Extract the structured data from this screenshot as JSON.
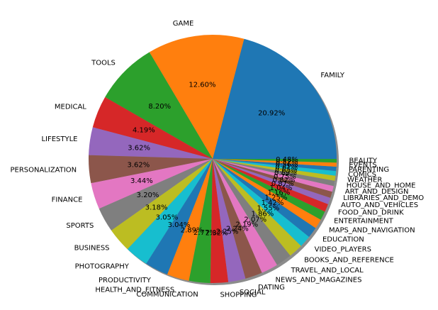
{
  "chart_data": {
    "type": "pie",
    "title": "",
    "shadow": true,
    "start_angle_deg": 0,
    "direction": "counterclockwise",
    "slices": [
      {
        "label": "FAMILY",
        "pct_text": "20.92%",
        "value": 20.92,
        "color": "#1f77b4"
      },
      {
        "label": "GAME",
        "pct_text": "12.60%",
        "value": 12.6,
        "color": "#ff7f0e"
      },
      {
        "label": "TOOLS",
        "pct_text": "8.20%",
        "value": 8.2,
        "color": "#2ca02c"
      },
      {
        "label": "MEDICAL",
        "pct_text": "4.19%",
        "value": 4.19,
        "color": "#d62728"
      },
      {
        "label": "LIFESTYLE",
        "pct_text": "3.62%",
        "value": 3.62,
        "color": "#9467bd"
      },
      {
        "label": "PERSONALIZATION",
        "pct_text": "3.62%",
        "value": 3.62,
        "color": "#8c564b"
      },
      {
        "label": "FINANCE",
        "pct_text": "3.44%",
        "value": 3.44,
        "color": "#e377c2"
      },
      {
        "label": "SPORTS",
        "pct_text": "3.20%",
        "value": 3.2,
        "color": "#7f7f7f"
      },
      {
        "label": "BUSINESS",
        "pct_text": "3.18%",
        "value": 3.18,
        "color": "#bcbd22"
      },
      {
        "label": "PHOTOGRAPHY",
        "pct_text": "3.05%",
        "value": 3.05,
        "color": "#17becf"
      },
      {
        "label": "PRODUCTIVITY",
        "pct_text": "3.04%",
        "value": 3.04,
        "color": "#1f77b4"
      },
      {
        "label": "HEALTH_AND_FITNESS",
        "pct_text": "2.89%",
        "value": 2.89,
        "color": "#ff7f0e"
      },
      {
        "label": "COMMUNICATION",
        "pct_text": "2.77%",
        "value": 2.77,
        "color": "#2ca02c"
      },
      {
        "label": "SHOPPING",
        "pct_text": "2.32%",
        "value": 2.32,
        "color": "#d62728"
      },
      {
        "label": "SOCIAL",
        "pct_text": "2.25%",
        "value": 2.25,
        "color": "#9467bd"
      },
      {
        "label": "DATING",
        "pct_text": "2.24%",
        "value": 2.24,
        "color": "#8c564b"
      },
      {
        "label": "NEWS_AND_MAGAZINES",
        "pct_text": "2.19%",
        "value": 2.19,
        "color": "#e377c2"
      },
      {
        "label": "TRAVEL_AND_LOCAL",
        "pct_text": "2.07%",
        "value": 2.07,
        "color": "#7f7f7f"
      },
      {
        "label": "BOOKS_AND_REFERENCE",
        "pct_text": "1.86%",
        "value": 1.86,
        "color": "#bcbd22"
      },
      {
        "label": "VIDEO_PLAYERS",
        "pct_text": "1.55%",
        "value": 1.55,
        "color": "#17becf"
      },
      {
        "label": "EDUCATION",
        "pct_text": "1.42%",
        "value": 1.42,
        "color": "#1f77b4"
      },
      {
        "label": "MAPS_AND_NAVIGATION",
        "pct_text": "1.25%",
        "value": 1.25,
        "color": "#ff7f0e"
      },
      {
        "label": "ENTERTAINMENT",
        "pct_text": "1.16%",
        "value": 1.16,
        "color": "#2ca02c"
      },
      {
        "label": "FOOD_AND_DRINK",
        "pct_text": "1.04%",
        "value": 1.04,
        "color": "#d62728"
      },
      {
        "label": "AUTO_AND_VEHICLES",
        "pct_text": "0.87%",
        "value": 0.87,
        "color": "#9467bd"
      },
      {
        "label": "LIBRARIES_AND_DEMO",
        "pct_text": "0.82%",
        "value": 0.82,
        "color": "#8c564b"
      },
      {
        "label": "ART_AND_DESIGN",
        "pct_text": "0.75%",
        "value": 0.75,
        "color": "#e377c2"
      },
      {
        "label": "HOUSE_AND_HOME",
        "pct_text": "0.69%",
        "value": 0.69,
        "color": "#7f7f7f"
      },
      {
        "label": "WEATHER",
        "pct_text": "0.65%",
        "value": 0.65,
        "color": "#bcbd22"
      },
      {
        "label": "COMICS",
        "pct_text": "0.61%",
        "value": 0.61,
        "color": "#17becf"
      },
      {
        "label": "PARENTING",
        "pct_text": "0.56%",
        "value": 0.56,
        "color": "#1f77b4"
      },
      {
        "label": "EVENTS",
        "pct_text": "0.52%",
        "value": 0.52,
        "color": "#ff7f0e"
      },
      {
        "label": "BEAUTY",
        "pct_text": "0.48%",
        "value": 0.48,
        "color": "#2ca02c"
      }
    ]
  }
}
